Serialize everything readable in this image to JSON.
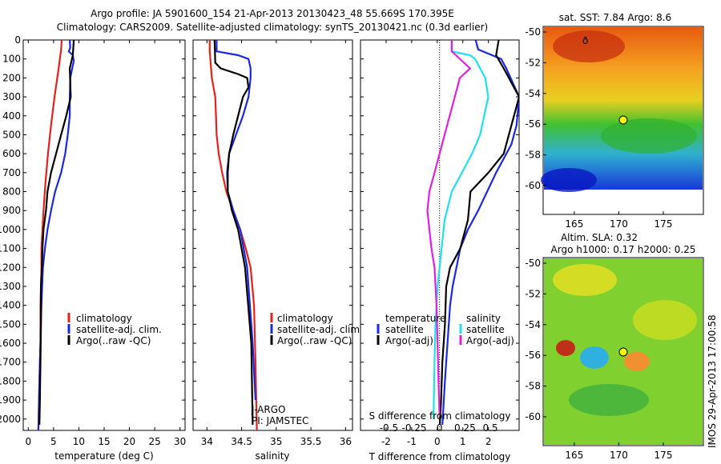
{
  "title": {
    "line1": "Argo profile: JA 5901600_154 21-Apr-2013 20130423_48 55.669S 170.395E",
    "line2": "Climatology: CARS2009. Satellite-adjusted climatology: synTS_20130421.nc (0.3d earlier)"
  },
  "side_stamp": "IMOS 29-Apr-2013 17:00:58",
  "colors": {
    "clim": "#e8201c",
    "sat": "#1a28e0",
    "argo": "#000000",
    "sat_s": "#20e0f0",
    "argo_s": "#e020e0"
  },
  "chart_data": [
    {
      "type": "line",
      "xlabel": "temperature (deg C)",
      "xlim": [
        -1,
        31
      ],
      "xticks": [
        "0",
        "5",
        "10",
        "15",
        "20",
        "25",
        "30"
      ],
      "ylim": [
        2060,
        0
      ],
      "yticks": [
        "0",
        "100",
        "200",
        "300",
        "400",
        "500",
        "600",
        "700",
        "800",
        "900",
        "1000",
        "1100",
        "1200",
        "1300",
        "1400",
        "1500",
        "1600",
        "1700",
        "1800",
        "1900",
        "2000"
      ],
      "legend": [
        "climatology",
        "satellite-adj. clim.",
        "Argo(..raw -QC)"
      ],
      "series": [
        {
          "name": "climatology",
          "color": "clim",
          "x": [
            6.6,
            6.5,
            6.0,
            5.2,
            4.5,
            3.9,
            3.4,
            3.0,
            2.8,
            2.6,
            2.6,
            2.5,
            2.4,
            2.4,
            2.4,
            2.3,
            2.2,
            2.0
          ],
          "y": [
            0,
            50,
            150,
            300,
            450,
            600,
            750,
            900,
            1000,
            1100,
            1200,
            1300,
            1400,
            1500,
            1600,
            1700,
            1800,
            2060
          ]
        },
        {
          "name": "satellite-adj. clim.",
          "color": "sat",
          "x": [
            8.2,
            8.3,
            8.0,
            8.8,
            9.0,
            8.3,
            8.2,
            8.2,
            7.8,
            7.3,
            6.5,
            5.3,
            4.5,
            3.8,
            3.3,
            2.9,
            2.6,
            2.4,
            2.2,
            2.0
          ],
          "y": [
            0,
            40,
            60,
            80,
            110,
            200,
            300,
            400,
            500,
            600,
            700,
            800,
            900,
            1000,
            1100,
            1200,
            1400,
            1600,
            1800,
            2060
          ]
        },
        {
          "name": "Argo(..raw -QC)",
          "color": "argo",
          "x": [
            9.0,
            8.8,
            8.2,
            8.4,
            7.5,
            6.5,
            5.5,
            4.5,
            3.8,
            3.5,
            3.0,
            2.8,
            2.7,
            2.5,
            2.5,
            2.4,
            2.3,
            2.2
          ],
          "y": [
            0,
            80,
            150,
            300,
            400,
            500,
            600,
            700,
            800,
            900,
            1000,
            1100,
            1200,
            1300,
            1500,
            1700,
            1900,
            2030
          ]
        }
      ]
    },
    {
      "type": "line",
      "xlabel": "salinity",
      "xlim": [
        33.8,
        36.1
      ],
      "xticks": [
        "34",
        "34.5",
        "35",
        "35.5",
        "36"
      ],
      "ylim": [
        2060,
        0
      ],
      "legend": [
        "climatology",
        "satellite-adj. clim.",
        "Argo(..raw -QC)"
      ],
      "annotation": [
        "J-ARGO",
        "PI: JAMSTEC"
      ],
      "series": [
        {
          "name": "climatology",
          "color": "clim",
          "x": [
            34.04,
            34.04,
            34.06,
            34.07,
            34.12,
            34.13,
            34.14,
            34.17,
            34.22,
            34.28,
            34.38,
            34.48,
            34.56,
            34.63,
            34.68,
            34.7,
            34.72
          ],
          "y": [
            0,
            60,
            150,
            200,
            300,
            400,
            500,
            600,
            700,
            800,
            900,
            1000,
            1100,
            1200,
            1400,
            1700,
            2060
          ]
        },
        {
          "name": "satellite-adj. clim.",
          "color": "sat",
          "x": [
            34.14,
            34.14,
            34.45,
            34.6,
            34.63,
            34.63,
            34.6,
            34.52,
            34.42,
            34.32,
            34.29,
            34.3,
            34.38,
            34.48,
            34.58,
            34.66,
            34.7
          ],
          "y": [
            0,
            60,
            80,
            100,
            150,
            200,
            300,
            400,
            500,
            600,
            700,
            800,
            900,
            1000,
            1200,
            1600,
            1900
          ]
        },
        {
          "name": "Argo(..raw -QC)",
          "color": "argo",
          "x": [
            34.11,
            34.12,
            34.2,
            34.45,
            34.58,
            34.6,
            34.52,
            34.45,
            34.38,
            34.32,
            34.3,
            34.3,
            34.36,
            34.45,
            34.55,
            34.64,
            34.66
          ],
          "y": [
            0,
            120,
            150,
            180,
            200,
            250,
            300,
            400,
            500,
            600,
            700,
            800,
            900,
            1000,
            1200,
            1600,
            2030
          ]
        }
      ]
    },
    {
      "type": "line",
      "xlabel": "T difference from climatology",
      "xlabel_top": "S difference from climatology",
      "xlim": [
        -3,
        3.2
      ],
      "xticks": [
        "-2",
        "-1",
        "0",
        "1",
        "2"
      ],
      "xticks_top": [
        "-0.5",
        "-0.25",
        "0",
        "0.25",
        "0.5"
      ],
      "ylim": [
        2060,
        0
      ],
      "legend_temperature": {
        "title": "temperature",
        "items": [
          "satellite",
          "Argo(-adj)"
        ]
      },
      "legend_salinity": {
        "title": "salinity",
        "items": [
          "satellite",
          "Argo(-adj)"
        ]
      },
      "series": [
        {
          "name": "satellite",
          "group": "temperature",
          "color": "sat",
          "x": [
            1.5,
            1.6,
            2.5,
            2.7,
            3.2,
            3.1,
            2.9,
            2.3,
            1.6,
            1.2,
            0.9,
            0.75,
            0.6,
            0.5,
            0.4,
            0.3,
            0.2
          ],
          "y": [
            0,
            50,
            100,
            150,
            300,
            450,
            550,
            700,
            900,
            1000,
            1100,
            1200,
            1300,
            1400,
            1600,
            1800,
            2030
          ]
        },
        {
          "name": "Argo(-adj)",
          "group": "temperature",
          "color": "argo",
          "x": [
            2.4,
            2.3,
            2.6,
            3.2,
            3.0,
            2.6,
            2.0,
            1.3,
            1.2,
            0.9,
            0.5,
            0.35,
            0.3,
            0.2,
            0.15,
            0.1
          ],
          "y": [
            0,
            80,
            150,
            300,
            400,
            600,
            700,
            800,
            950,
            1100,
            1200,
            1300,
            1500,
            1700,
            1900,
            2030
          ]
        }
      ],
      "series_salinity": [
        {
          "name": "satellite",
          "group": "salinity",
          "color": "sat_s",
          "x": [
            0.12,
            0.12,
            0.3,
            0.35,
            0.45,
            0.48,
            0.4,
            0.32,
            0.22,
            0.12,
            0.05,
            0.02,
            -0.02,
            -0.04,
            -0.05,
            -0.06
          ],
          "y": [
            0,
            60,
            80,
            100,
            200,
            300,
            500,
            600,
            700,
            800,
            950,
            1100,
            1300,
            1500,
            1700,
            2000
          ]
        },
        {
          "name": "Argo(-adj)",
          "group": "salinity",
          "color": "argo_s",
          "x": [
            0.12,
            0.12,
            0.3,
            0.2,
            0.15,
            0.05,
            -0.05,
            -0.1,
            -0.12,
            -0.1,
            -0.08,
            -0.05,
            -0.03,
            -0.02,
            -0.01,
            0.0
          ],
          "y": [
            0,
            60,
            150,
            200,
            300,
            500,
            700,
            800,
            900,
            1000,
            1100,
            1200,
            1400,
            1600,
            1800,
            1980
          ]
        }
      ]
    },
    {
      "type": "heatmap",
      "title": "sat. SST: 7.84 Argo: 8.6",
      "xticks": [
        "165",
        "170",
        "175"
      ],
      "yticks": [
        "-50",
        "-52",
        "-54",
        "-56",
        "-58",
        "-60"
      ],
      "marker": {
        "lon": 170.4,
        "lat": -55.7
      }
    },
    {
      "type": "heatmap",
      "title_line1": "Altim. SLA: 0.32",
      "title_line2": "Argo h1000: 0.17 h2000: 0.25",
      "xticks": [
        "165",
        "170",
        "175"
      ],
      "yticks": [
        "-50",
        "-52",
        "-54",
        "-56",
        "-58",
        "-60"
      ],
      "marker": {
        "lon": 170.4,
        "lat": -55.7
      }
    }
  ]
}
